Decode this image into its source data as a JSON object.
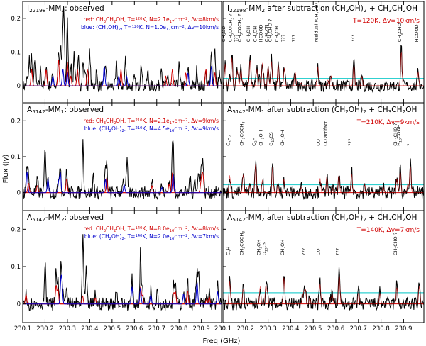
{
  "chart_data": {
    "type": "line",
    "title": "",
    "xlabel": "Freq (GHz)",
    "ylabel": "Flux (Jy)",
    "xlim": [
      230.1,
      230.99
    ],
    "ylim": [
      -0.05,
      0.25
    ],
    "x_ticks": [
      230.1,
      230.2,
      230.3,
      230.4,
      230.5,
      230.6,
      230.7,
      230.8,
      230.9
    ],
    "y_ticks": [
      0,
      0.1,
      0.2
    ],
    "colors": {
      "observed": "#000000",
      "ch3ch2oh_model": "#d00000",
      "ch2oh2_model": "#0000cc",
      "residual_threshold": "#30d0d0",
      "annotation_red": "#d00000"
    },
    "panels": [
      {
        "id": "i22198-observed",
        "column": "left",
        "row": 0,
        "title": "I22198-MM2: observed",
        "legend": [
          "red: CH3CH2OH, T=120K, N=2.1e17cm-2, Δv=8km/s",
          "blue: (CH2OH)2, T=120K, N=1.0e17cm-2, Δv=10km/s"
        ],
        "series": [
          {
            "name": "observed",
            "x": [
              230.12,
              230.13,
              230.14,
              230.155,
              230.18,
              230.205,
              230.235,
              230.26,
              230.27,
              230.28,
              230.285,
              230.3,
              230.315,
              230.33,
              230.35,
              230.37,
              230.38,
              230.4,
              230.43,
              230.47,
              230.52,
              230.56,
              230.6,
              230.63,
              230.66,
              230.72,
              230.75,
              230.8,
              230.84,
              230.88,
              230.92,
              230.945,
              230.96,
              230.98
            ],
            "y": [
              0.02,
              0.08,
              0.09,
              0.09,
              0.05,
              0.07,
              0.04,
              0.1,
              0.12,
              0.14,
              0.18,
              0.19,
              0.07,
              0.1,
              0.1,
              0.07,
              0.05,
              0.1,
              0.04,
              0.07,
              0.06,
              0.08,
              0.02,
              0.08,
              0.04,
              0.07,
              0.03,
              0.06,
              0.05,
              0.05,
              0.04,
              0.1,
              0.12,
              0.04
            ]
          },
          {
            "name": "CH3CH2OH model",
            "x": [
              230.14,
              230.205,
              230.26,
              230.3,
              230.315,
              230.345,
              230.39,
              230.54,
              230.74,
              230.77,
              230.83,
              230.92,
              230.96
            ],
            "y": [
              0.05,
              0.05,
              0.08,
              0.07,
              0.03,
              0.05,
              0.05,
              0.05,
              0.03,
              0.05,
              0.04,
              0.05,
              0.04
            ]
          },
          {
            "name": "(CH2OH)2 model",
            "x": [
              230.235,
              230.28,
              230.3,
              230.465,
              230.53,
              230.565,
              230.84,
              230.945
            ],
            "y": [
              0.03,
              0.05,
              0.04,
              0.06,
              0.03,
              0.03,
              0.04,
              0.06
            ]
          }
        ]
      },
      {
        "id": "i22198-residual",
        "column": "right",
        "row": 0,
        "title": "I22198-MM2 after subtraction (CH2OH)2 + CH3CH2OH",
        "params": "T=120K, Δv=10km/s",
        "threshold": 0.022,
        "labels": [
          {
            "x": 230.11,
            "text": "CH3OD"
          },
          {
            "x": 230.14,
            "text": "CH3COCH3 ?"
          },
          {
            "x": 230.165,
            "text": "???"
          },
          {
            "x": 230.18,
            "text": "CH3COCH3 ?"
          },
          {
            "x": 230.22,
            "text": "CH3OH"
          },
          {
            "x": 230.25,
            "text": "CH3OH"
          },
          {
            "x": 230.275,
            "text": "HCOOD"
          },
          {
            "x": 230.3,
            "text": "C3H7CN"
          },
          {
            "x": 230.315,
            "text": "CH2CHO ?"
          },
          {
            "x": 230.345,
            "text": "CH3OH"
          },
          {
            "x": 230.372,
            "text": "???"
          },
          {
            "x": 230.42,
            "text": "???"
          },
          {
            "x": 230.52,
            "text": "residual (CH2OH)2"
          },
          {
            "x": 230.68,
            "text": "???"
          },
          {
            "x": 230.89,
            "text": "CH3CHO"
          },
          {
            "x": 230.965,
            "text": "HCOOD"
          }
        ]
      },
      {
        "id": "a5142mm1-observed",
        "column": "left",
        "row": 1,
        "title": "A5142-MM1: observed",
        "legend": [
          "red: CH3CH2OH, T=210K, N=2.1e17cm-2, Δv=9km/s",
          "blue: (CH2OH)2, T=210K, N=4.5e16cm-2, Δv=9km/s"
        ]
      },
      {
        "id": "a5142mm1-residual",
        "column": "right",
        "row": 1,
        "title": "A5142-MM1 after subtraction (CH2OH)2 + CH3CH2OH",
        "params": "T=210K, Δv=9km/s",
        "threshold": 0.022,
        "labels": [
          {
            "x": 230.13,
            "text": "C3H7"
          },
          {
            "x": 230.19,
            "text": "CH3COCH3"
          },
          {
            "x": 230.245,
            "text": "C3H"
          },
          {
            "x": 230.275,
            "text": "CH3OH"
          },
          {
            "x": 230.32,
            "text": "O13CS"
          },
          {
            "x": 230.37,
            "text": "CH3OH"
          },
          {
            "x": 230.53,
            "text": "CO"
          },
          {
            "x": 230.56,
            "text": "CO artifact"
          },
          {
            "x": 230.67,
            "text": "???"
          },
          {
            "x": 230.87,
            "text": "CH3CHO ?"
          },
          {
            "x": 230.885,
            "text": "H13COOH"
          },
          {
            "x": 230.93,
            "text": "?"
          }
        ]
      },
      {
        "id": "a5142mm2-observed",
        "column": "left",
        "row": 2,
        "title": "A5142-MM2: observed",
        "legend": [
          "red: CH3CH2OH, T=140K, N=8.0e16cm-2, Δv=8km/s",
          "blue: (CH2OH)2, T=140K, N=2.0e16cm-2, Δv=7km/s"
        ]
      },
      {
        "id": "a5142mm2-residual",
        "column": "right",
        "row": 2,
        "title": "A5142-MM2 after subtraction (CH2OH)2 + CH3CH2OH",
        "params": "T=140K, Δv=7km/s",
        "threshold": 0.03,
        "labels": [
          {
            "x": 230.13,
            "text": "C3H"
          },
          {
            "x": 230.19,
            "text": "CH3COCH3"
          },
          {
            "x": 230.265,
            "text": "CH3OH"
          },
          {
            "x": 230.29,
            "text": "O13CS"
          },
          {
            "x": 230.37,
            "text": "CH3OH"
          },
          {
            "x": 230.465,
            "text": "???"
          },
          {
            "x": 230.53,
            "text": "CO"
          },
          {
            "x": 230.615,
            "text": "???"
          },
          {
            "x": 230.87,
            "text": "CH3CHO ?"
          }
        ]
      }
    ]
  }
}
